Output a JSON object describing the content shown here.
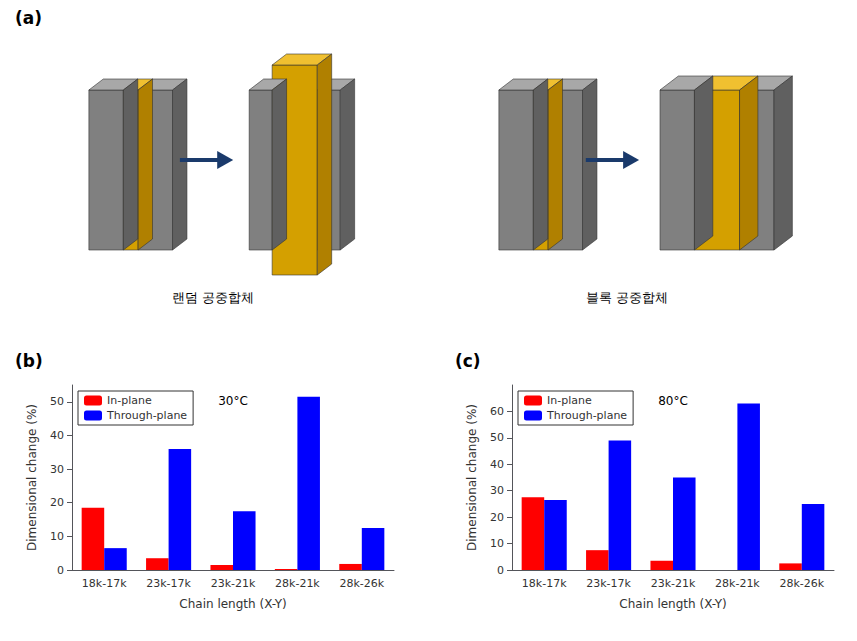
{
  "chart_data": [
    {
      "type": "illustration",
      "title": "(a)",
      "annotations": [
        "랜덤 공중합체",
        "블록 공중합체"
      ],
      "colors": [
        "#808080",
        "#A8A8A8",
        "#606060",
        "#D4A000",
        "#F0C030",
        "#B08000",
        "#1a3a6b"
      ]
    },
    {
      "type": "bar",
      "title": "(b)",
      "annotations": [
        "30°C"
      ],
      "categories": [
        "18k-17k",
        "23k-17k",
        "23k-21k",
        "28k-21k",
        "28k-26k"
      ],
      "series": [
        {
          "name": "In-plane",
          "color": "#FF0000",
          "values": [
            18.5,
            3.5,
            1.5,
            0.3,
            1.8
          ]
        },
        {
          "name": "Through-plane",
          "color": "#0000FF",
          "values": [
            6.5,
            36.0,
            17.5,
            51.5,
            12.5
          ]
        }
      ],
      "xlabel": "Chain length (X-Y)",
      "ylabel": "Dimensional change (%)",
      "ylim": [
        0,
        55
      ],
      "yticks": [
        0,
        10,
        20,
        30,
        40,
        50
      ],
      "grid": false,
      "legend": "upper left"
    },
    {
      "type": "bar",
      "title": "(c)",
      "annotations": [
        "80°C"
      ],
      "categories": [
        "18k-17k",
        "23k-17k",
        "23k-21k",
        "28k-21k",
        "28k-26k"
      ],
      "series": [
        {
          "name": "In-plane",
          "color": "#FF0000",
          "values": [
            27.5,
            7.5,
            3.5,
            0.0,
            2.5
          ]
        },
        {
          "name": "Through-plane",
          "color": "#0000FF",
          "values": [
            26.5,
            49.0,
            35.0,
            63.0,
            25.0
          ]
        }
      ],
      "xlabel": "Chain length (X-Y)",
      "ylabel": "Dimensional change (%)",
      "ylim": [
        0,
        70
      ],
      "yticks": [
        0,
        10,
        20,
        30,
        40,
        50,
        60
      ],
      "grid": false,
      "legend": "upper left"
    }
  ]
}
